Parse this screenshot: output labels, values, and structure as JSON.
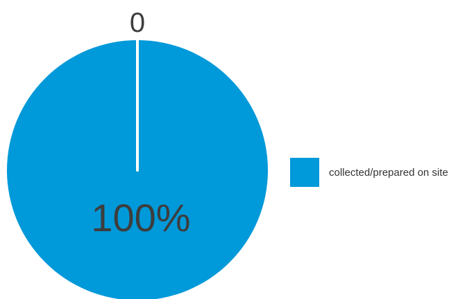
{
  "chart_data": {
    "type": "pie",
    "title": "",
    "slices": [
      {
        "label": "collected/prepared on site",
        "value": 100,
        "percent_label": "100%",
        "color": "#0099d9"
      }
    ],
    "start_tick_label": "0",
    "legend": {
      "position": "right",
      "entries": [
        {
          "label": "collected/prepared on site",
          "color": "#0099d9"
        }
      ]
    },
    "colors": {
      "separator": "#ffffff"
    }
  }
}
